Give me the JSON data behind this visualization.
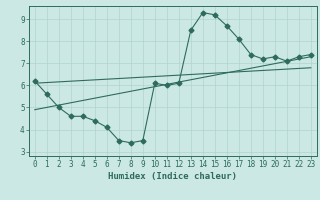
{
  "zigzag_x": [
    0,
    1,
    2,
    3,
    4,
    5,
    6,
    7,
    8,
    9,
    10,
    11,
    12,
    13,
    14,
    15,
    16,
    17,
    18,
    19,
    20,
    21,
    22,
    23
  ],
  "zigzag_y": [
    6.2,
    5.6,
    5.0,
    4.6,
    4.6,
    4.4,
    4.1,
    3.5,
    3.4,
    3.5,
    6.1,
    6.0,
    6.1,
    8.5,
    9.3,
    9.2,
    8.7,
    8.1,
    7.4,
    7.2,
    7.3,
    7.1,
    7.3,
    7.4
  ],
  "trend1_x": [
    0,
    23
  ],
  "trend1_y": [
    4.9,
    7.3
  ],
  "trend2_x": [
    0,
    23
  ],
  "trend2_y": [
    6.1,
    6.8
  ],
  "line_color": "#2e6b5e",
  "bg_color": "#cce8e4",
  "grid_color": "#b0d4d0",
  "xlabel": "Humidex (Indice chaleur)",
  "ylim": [
    2.8,
    9.6
  ],
  "xlim": [
    -0.5,
    23.5
  ],
  "yticks": [
    3,
    4,
    5,
    6,
    7,
    8,
    9
  ],
  "xticks": [
    0,
    1,
    2,
    3,
    4,
    5,
    6,
    7,
    8,
    9,
    10,
    11,
    12,
    13,
    14,
    15,
    16,
    17,
    18,
    19,
    20,
    21,
    22,
    23
  ],
  "marker": "D",
  "marker_size": 2.5,
  "linewidth": 0.8,
  "xlabel_fontsize": 6.5,
  "tick_fontsize": 5.5
}
